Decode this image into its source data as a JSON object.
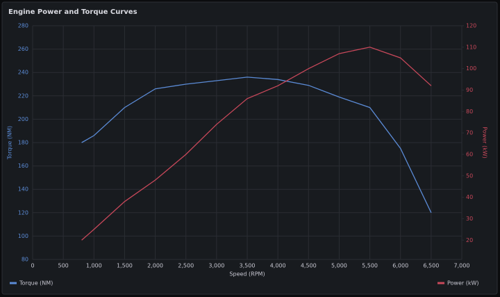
{
  "chart_data": {
    "type": "line",
    "title": "Engine Power and Torque Curves",
    "xlabel": "Speed (RPM)",
    "ylabel": "Torque (NM)",
    "y2label": "Power (kW)",
    "x": [
      800,
      1000,
      1500,
      2000,
      2500,
      3000,
      3500,
      4000,
      4500,
      5000,
      5500,
      6000,
      6500
    ],
    "series": [
      {
        "name": "Torque (NM)",
        "color": "#5b8bd6",
        "axis": "y",
        "values": [
          180,
          186,
          210,
          226,
          230,
          233,
          236,
          234,
          229,
          219,
          210,
          175,
          120
        ]
      },
      {
        "name": "Power (kW)",
        "color": "#c8485a",
        "axis": "y2",
        "values": [
          20,
          25,
          38,
          48,
          60,
          74,
          86,
          92,
          100,
          107,
          110,
          105,
          92
        ]
      }
    ],
    "xlim": [
      0,
      7000
    ],
    "xticks": [
      0,
      500,
      {
        "value": 1000,
        "label": "1,000"
      },
      {
        "value": 1500,
        "label": "1,500"
      },
      {
        "value": 2000,
        "label": "2,000"
      },
      {
        "value": 2500,
        "label": "2,500"
      },
      {
        "value": 3000,
        "label": "3,000"
      },
      {
        "value": 3500,
        "label": "3,500"
      },
      {
        "value": 4000,
        "label": "4,000"
      },
      {
        "value": 4500,
        "label": "4,500"
      },
      {
        "value": 5000,
        "label": "5,000"
      },
      {
        "value": 5500,
        "label": "5,500"
      },
      {
        "value": 6000,
        "label": "6,000"
      },
      {
        "value": 6500,
        "label": "6,500"
      },
      {
        "value": 7000,
        "label": "7,000"
      }
    ],
    "ylim": [
      80,
      280
    ],
    "yticks": [
      80,
      100,
      120,
      140,
      160,
      180,
      200,
      220,
      240,
      260,
      280
    ],
    "y2lim": [
      11,
      120
    ],
    "y2ticks": [
      20,
      30,
      40,
      50,
      60,
      70,
      80,
      90,
      100,
      110,
      120
    ],
    "grid": true,
    "legend": "bottom"
  }
}
